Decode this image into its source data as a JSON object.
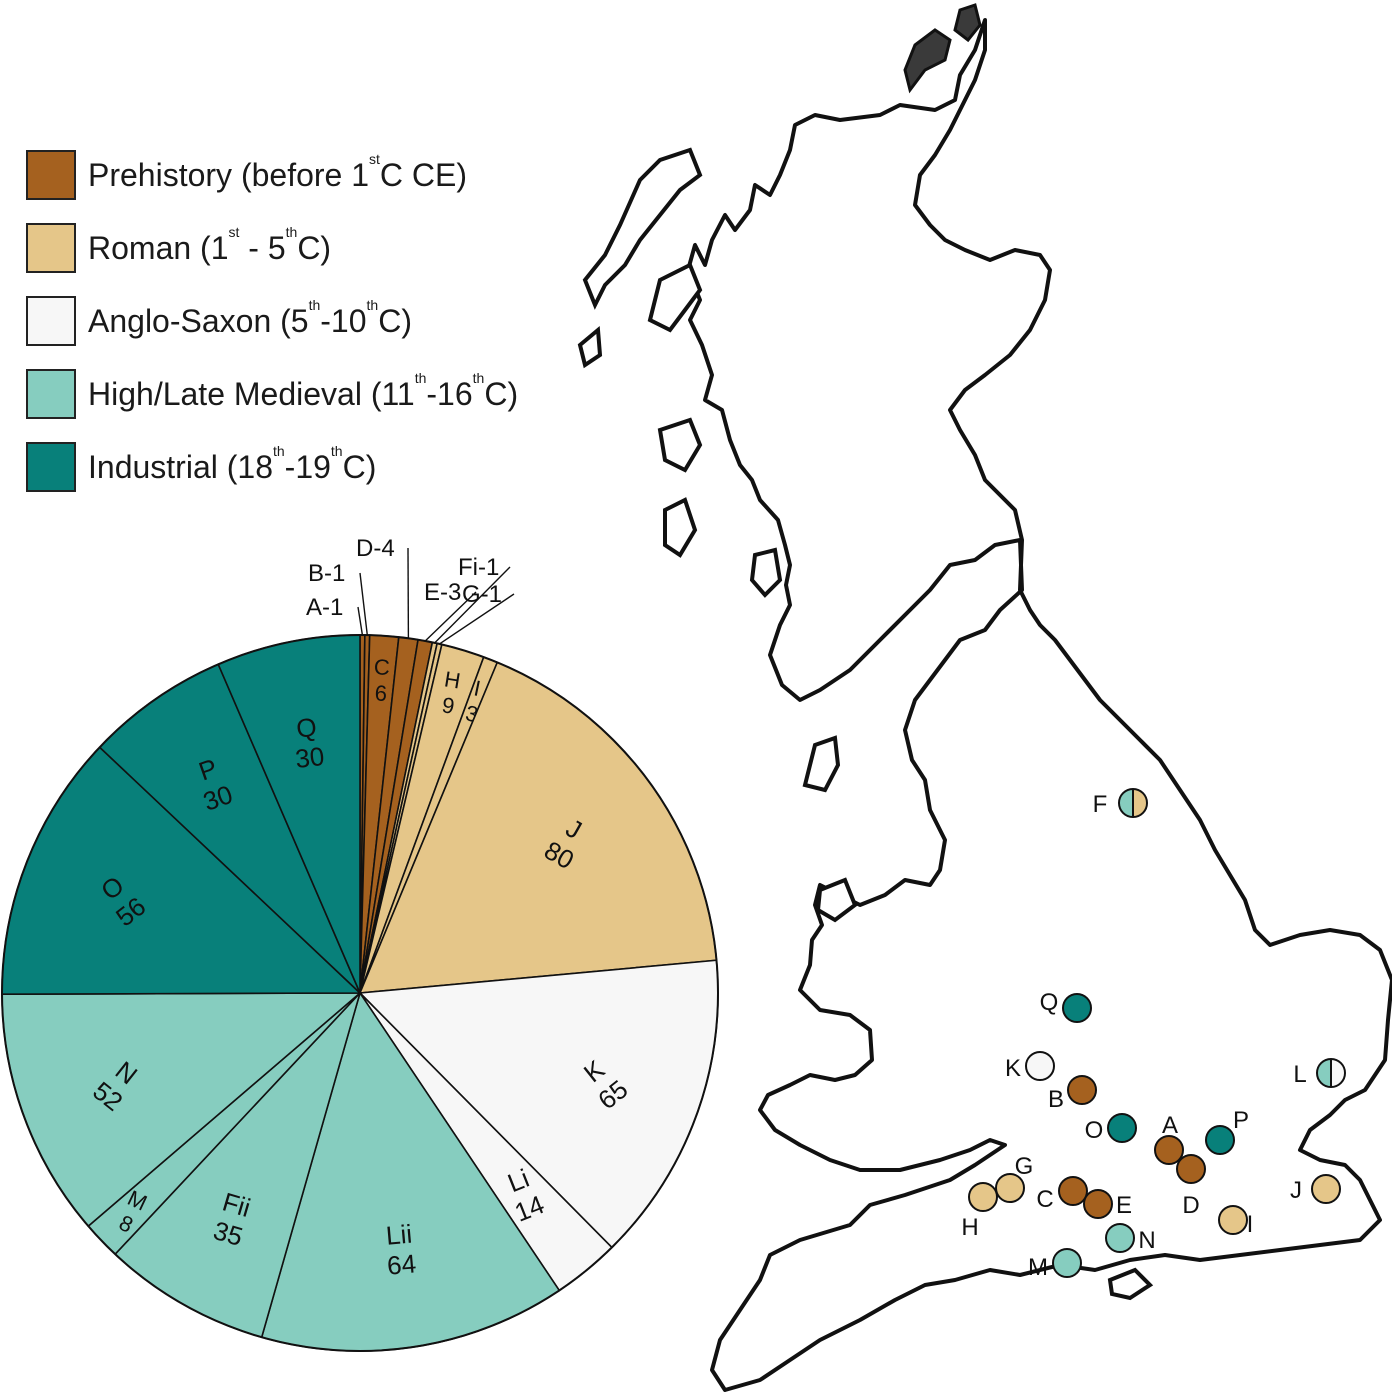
{
  "colors": {
    "prehistory": "#a5611f",
    "roman": "#e5c689",
    "anglo_saxon": "#f7f7f7",
    "medieval": "#86cdbf",
    "industrial": "#08807a",
    "outline": "#111111"
  },
  "legend": [
    {
      "key": "prehistory",
      "label": "Prehistory (before 1",
      "sup": "st",
      "tail": "C CE)"
    },
    {
      "key": "roman",
      "label": "Roman (1",
      "sup": "st",
      "tail": " - 5",
      "sup2": "th",
      "tail2": "C)"
    },
    {
      "key": "anglo_saxon",
      "label": "Anglo-Saxon (5",
      "sup": "th",
      "tail": "-10",
      "sup2": "th",
      "tail2": "C)"
    },
    {
      "key": "medieval",
      "label": "High/Late Medieval (11",
      "sup": "th",
      "tail": "-16",
      "sup2": "th",
      "tail2": "C)"
    },
    {
      "key": "industrial",
      "label": "Industrial (18",
      "sup": "th",
      "tail": "-19",
      "sup2": "th",
      "tail2": "C)"
    }
  ],
  "chart_data": {
    "type": "pie",
    "legend_position": "top-left",
    "slices": [
      {
        "label": "A-1",
        "value": 1,
        "period": "prehistory",
        "callout": true
      },
      {
        "label": "B-1",
        "value": 1,
        "period": "prehistory",
        "callout": true
      },
      {
        "label": "C",
        "value": 6,
        "period": "prehistory"
      },
      {
        "label": "D-4",
        "value": 4,
        "period": "prehistory",
        "callout": true
      },
      {
        "label": "E",
        "value": 3,
        "period": "prehistory",
        "callout": true
      },
      {
        "label": "Fi-1",
        "value": 1,
        "period": "roman",
        "callout": true
      },
      {
        "label": "G-1",
        "value": 1,
        "period": "roman",
        "callout": true
      },
      {
        "label": "H",
        "value": 9,
        "period": "roman"
      },
      {
        "label": "I",
        "value": 3,
        "period": "roman"
      },
      {
        "label": "J",
        "value": 80,
        "period": "roman"
      },
      {
        "label": "K",
        "value": 65,
        "period": "anglo_saxon"
      },
      {
        "label": "Li",
        "value": 14,
        "period": "anglo_saxon"
      },
      {
        "label": "Lii",
        "value": 64,
        "period": "medieval"
      },
      {
        "label": "Fii",
        "value": 35,
        "period": "medieval"
      },
      {
        "label": "M",
        "value": 8,
        "period": "medieval"
      },
      {
        "label": "N",
        "value": 52,
        "period": "medieval"
      },
      {
        "label": "O",
        "value": 56,
        "period": "industrial"
      },
      {
        "label": "P",
        "value": 30,
        "period": "industrial"
      },
      {
        "label": "Q",
        "value": 30,
        "period": "industrial"
      }
    ]
  },
  "map": {
    "sites": [
      {
        "label": "F",
        "periods": [
          "medieval",
          "roman"
        ]
      },
      {
        "label": "Q",
        "periods": [
          "industrial"
        ]
      },
      {
        "label": "K",
        "periods": [
          "anglo_saxon"
        ]
      },
      {
        "label": "L",
        "periods": [
          "medieval",
          "anglo_saxon"
        ]
      },
      {
        "label": "B",
        "periods": [
          "prehistory"
        ]
      },
      {
        "label": "O",
        "periods": [
          "industrial"
        ]
      },
      {
        "label": "A",
        "periods": [
          "prehistory"
        ]
      },
      {
        "label": "P",
        "periods": [
          "industrial"
        ]
      },
      {
        "label": "D",
        "periods": [
          "prehistory"
        ]
      },
      {
        "label": "G",
        "periods": [
          "roman"
        ]
      },
      {
        "label": "H",
        "periods": [
          "roman"
        ]
      },
      {
        "label": "C",
        "periods": [
          "prehistory"
        ]
      },
      {
        "label": "E",
        "periods": [
          "prehistory"
        ]
      },
      {
        "label": "J",
        "periods": [
          "roman"
        ]
      },
      {
        "label": "I",
        "periods": [
          "roman"
        ]
      },
      {
        "label": "N",
        "periods": [
          "medieval"
        ]
      },
      {
        "label": "M",
        "periods": [
          "medieval"
        ]
      }
    ]
  }
}
